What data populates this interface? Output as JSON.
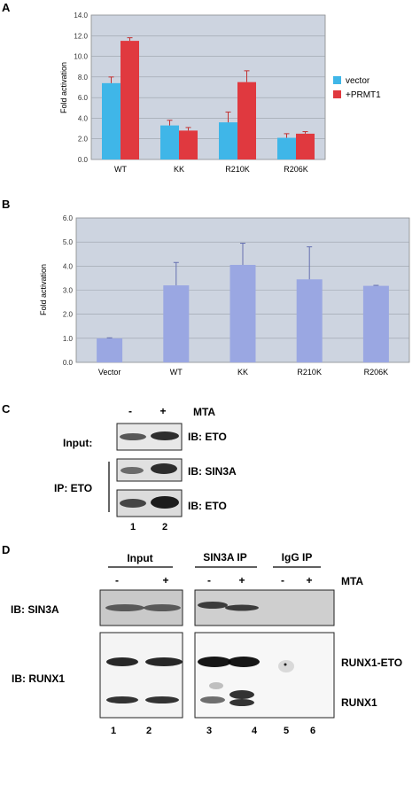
{
  "panels": {
    "a": "A",
    "b": "B",
    "c": "C",
    "d": "D"
  },
  "colors": {
    "vector": "#3fb6e8",
    "prmt1": "#e0393f",
    "bar_b": "#9aa7e2",
    "plot_bg": "#cdd4e0"
  },
  "chart_data": [
    {
      "type": "bar",
      "ylabel": "Fold activation",
      "ylim": [
        0,
        14
      ],
      "yticks": [
        "0.0",
        "2.0",
        "4.0",
        "6.0",
        "8.0",
        "10.0",
        "12.0",
        "14.0"
      ],
      "categories": [
        "WT",
        "KK",
        "R210K",
        "R206K"
      ],
      "legend_position": "right",
      "grid": true,
      "series": [
        {
          "name": "vector",
          "values": [
            7.4,
            3.3,
            3.6,
            2.1
          ],
          "errors": [
            0.6,
            0.5,
            1.0,
            0.4
          ]
        },
        {
          "name": "+PRMT1",
          "values": [
            11.5,
            2.8,
            7.5,
            2.5
          ],
          "errors": [
            0.3,
            0.3,
            1.1,
            0.2
          ]
        }
      ]
    },
    {
      "type": "bar",
      "ylabel": "Fold activation",
      "ylim": [
        0,
        6
      ],
      "yticks": [
        "0.0",
        "1.0",
        "2.0",
        "3.0",
        "4.0",
        "5.0",
        "6.0"
      ],
      "categories": [
        "Vector",
        "WT",
        "KK",
        "R210K",
        "R206K"
      ],
      "grid": true,
      "series": [
        {
          "values": [
            1.0,
            3.2,
            4.05,
            3.45,
            3.18
          ],
          "errors": [
            0.02,
            0.95,
            0.9,
            1.35,
            0.02
          ]
        }
      ]
    }
  ],
  "blot_c": {
    "minus": "-",
    "plus": "+",
    "mta": "MTA",
    "input": "Input:",
    "ip": "IP: ETO",
    "ib_eto_1": "IB: ETO",
    "ib_sin3a": "IB: SIN3A",
    "ib_eto_2": "IB: ETO",
    "lane1": "1",
    "lane2": "2"
  },
  "blot_d": {
    "input": "Input",
    "sin3a_ip": "SIN3A IP",
    "igg_ip": "IgG IP",
    "mta": "MTA",
    "minus": "-",
    "plus": "+",
    "ib_sin3a": "IB: SIN3A",
    "ib_runx1": "IB: RUNX1",
    "runx1_eto": "RUNX1-ETO",
    "runx1": "RUNX1",
    "lanes": [
      "1",
      "2",
      "3",
      "4",
      "5",
      "6"
    ]
  }
}
